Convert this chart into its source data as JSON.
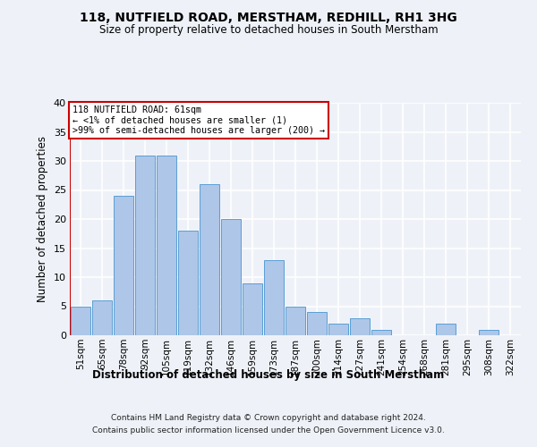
{
  "title1": "118, NUTFIELD ROAD, MERSTHAM, REDHILL, RH1 3HG",
  "title2": "Size of property relative to detached houses in South Merstham",
  "xlabel": "Distribution of detached houses by size in South Merstham",
  "ylabel": "Number of detached properties",
  "categories": [
    "51sqm",
    "65sqm",
    "78sqm",
    "92sqm",
    "105sqm",
    "119sqm",
    "132sqm",
    "146sqm",
    "159sqm",
    "173sqm",
    "187sqm",
    "200sqm",
    "214sqm",
    "227sqm",
    "241sqm",
    "254sqm",
    "268sqm",
    "281sqm",
    "295sqm",
    "308sqm",
    "322sqm"
  ],
  "values": [
    5,
    6,
    24,
    31,
    31,
    18,
    26,
    20,
    9,
    13,
    5,
    4,
    2,
    3,
    1,
    0,
    0,
    2,
    0,
    1,
    0
  ],
  "bar_color": "#aec6e8",
  "bar_edge_color": "#5a9fd4",
  "annotation_box_color": "#ffffff",
  "annotation_border_color": "#cc0000",
  "vline_color": "#cc0000",
  "annotation_title": "118 NUTFIELD ROAD: 61sqm",
  "annotation_line1": "← <1% of detached houses are smaller (1)",
  "annotation_line2": ">99% of semi-detached houses are larger (200) →",
  "footer1": "Contains HM Land Registry data © Crown copyright and database right 2024.",
  "footer2": "Contains public sector information licensed under the Open Government Licence v3.0.",
  "ylim": [
    0,
    40
  ],
  "yticks": [
    0,
    5,
    10,
    15,
    20,
    25,
    30,
    35,
    40
  ],
  "background_color": "#eef2f8",
  "plot_bg_color": "#eef2f8",
  "grid_color": "#ffffff"
}
